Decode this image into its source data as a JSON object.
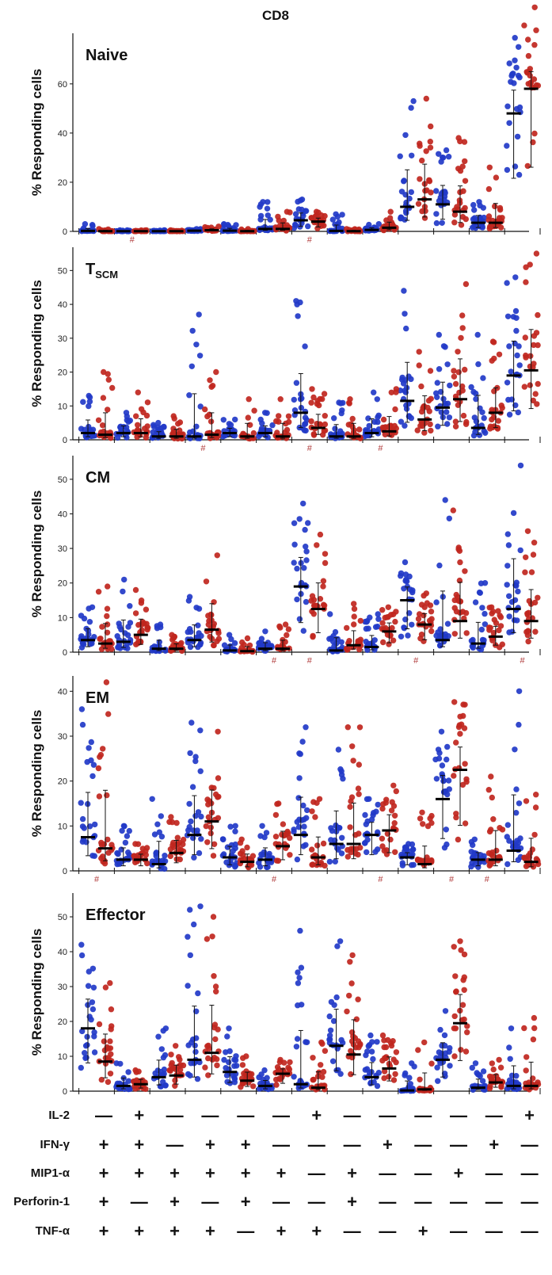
{
  "figure": {
    "title": "CD8",
    "ylabel": "% Responding cells",
    "colors": {
      "blue": "#2239c8",
      "red": "#c0261e",
      "axis": "#111111",
      "hash": "#b03a3a"
    }
  },
  "chart_data": [
    {
      "type": "scatter",
      "title": "Naive",
      "ylim": [
        0,
        78
      ],
      "yticks": [
        0,
        20,
        40,
        60
      ],
      "series": [
        {
          "name": "",
          "color": "blue",
          "medians": [
            0.2,
            0.1,
            0.1,
            0.3,
            0.3,
            1,
            4.5,
            0.2,
            0.6,
            10,
            11,
            3.5,
            48
          ],
          "spread": [
            3,
            0.5,
            0.5,
            1,
            3,
            12,
            13,
            7,
            3,
            53,
            33,
            12,
            75
          ]
        },
        {
          "name": "",
          "color": "red",
          "medians": [
            0.1,
            0.1,
            0.1,
            0.5,
            0.1,
            1,
            4,
            0.1,
            1.5,
            13,
            8,
            3.5,
            58
          ],
          "spread": [
            1,
            0.5,
            0.5,
            2,
            1,
            8,
            8,
            1,
            8,
            54,
            38,
            26,
            78
          ]
        }
      ],
      "hash_marks": [
        "#",
        "#"
      ],
      "hash_positions": [
        1.5,
        6.5
      ]
    },
    {
      "type": "scatter",
      "title": "T",
      "title_sub": "SCM",
      "ylim": [
        0,
        55
      ],
      "yticks": [
        0,
        10,
        20,
        30,
        40,
        50
      ],
      "series": [
        {
          "name": "",
          "color": "blue",
          "medians": [
            2,
            2,
            1,
            1,
            2,
            2,
            8,
            1,
            2,
            11.5,
            9.5,
            3.5,
            19
          ],
          "spread": [
            13,
            8,
            5,
            37,
            6,
            8,
            41,
            11,
            14,
            44,
            31,
            31,
            48
          ]
        },
        {
          "name": "",
          "color": "red",
          "medians": [
            1.5,
            2,
            1,
            1.5,
            1,
            1,
            3.5,
            1,
            2.5,
            6,
            12,
            8,
            20.5
          ],
          "spread": [
            20,
            14,
            7,
            20,
            12,
            12,
            15,
            12,
            15,
            26,
            46,
            29,
            55
          ]
        }
      ],
      "hash_marks": [
        "#",
        "#",
        "#"
      ],
      "hash_positions": [
        3.5,
        6.5,
        8.5
      ]
    },
    {
      "type": "scatter",
      "title": "CM",
      "ylim": [
        0,
        55
      ],
      "yticks": [
        0,
        10,
        20,
        30,
        40,
        50
      ],
      "series": [
        {
          "name": "",
          "color": "blue",
          "medians": [
            3.5,
            3,
            1,
            3.5,
            0.5,
            1,
            19,
            0.5,
            1.5,
            15,
            3.5,
            2.5,
            12.5
          ],
          "spread": [
            13,
            21,
            8,
            16,
            5,
            6,
            43,
            11,
            11,
            26,
            44,
            20,
            54
          ]
        },
        {
          "name": "",
          "color": "red",
          "medians": [
            2.5,
            5,
            1,
            6.5,
            0.3,
            1,
            12.5,
            2,
            6,
            8,
            9,
            4.5,
            9
          ],
          "spread": [
            19,
            18,
            5,
            28,
            4,
            8,
            34,
            14,
            13,
            17,
            41,
            13,
            35
          ]
        }
      ],
      "hash_marks": [
        "#",
        "#",
        "#",
        "#"
      ],
      "hash_positions": [
        5.5,
        6.5,
        9.5,
        12.5
      ]
    },
    {
      "type": "scatter",
      "title": "EM",
      "ylim": [
        0,
        42
      ],
      "yticks": [
        0,
        10,
        20,
        30,
        40
      ],
      "series": [
        {
          "name": "",
          "color": "blue",
          "medians": [
            7.5,
            2.5,
            1.5,
            8,
            3,
            2.5,
            8,
            6,
            8,
            3,
            16,
            2.5,
            4.5
          ],
          "spread": [
            36,
            10,
            16,
            33,
            10,
            10,
            32,
            27,
            16,
            6,
            31,
            7,
            40
          ]
        },
        {
          "name": "",
          "color": "red",
          "medians": [
            5,
            2.5,
            4,
            11,
            2,
            5.5,
            3,
            6,
            9,
            1.5,
            22.5,
            2.5,
            2
          ],
          "spread": [
            42,
            6,
            12,
            31,
            7,
            15,
            16,
            32,
            19,
            13,
            37,
            21,
            17
          ]
        }
      ],
      "hash_marks": [
        "#",
        "#",
        "#",
        "#",
        "#"
      ],
      "hash_positions": [
        0.5,
        5.5,
        8.5,
        10.5,
        11.5
      ]
    },
    {
      "type": "scatter",
      "title": "Effector",
      "ylim": [
        0,
        55
      ],
      "yticks": [
        0,
        10,
        20,
        30,
        40,
        50
      ],
      "series": [
        {
          "name": "",
          "color": "blue",
          "medians": [
            18,
            1.5,
            4,
            9,
            5.5,
            1.5,
            2,
            13,
            4,
            0.2,
            9,
            1,
            1.5
          ],
          "spread": [
            42,
            8,
            18,
            53,
            18,
            6,
            46,
            43,
            16,
            8,
            23,
            8,
            18
          ]
        },
        {
          "name": "",
          "color": "red",
          "medians": [
            8.5,
            2,
            4.5,
            11,
            3,
            5,
            1,
            10.5,
            6.5,
            0.5,
            19.5,
            2.5,
            1.5
          ],
          "spread": [
            31,
            6,
            13,
            50,
            10,
            9,
            14,
            39,
            16,
            14,
            43,
            9,
            21
          ]
        }
      ],
      "hash_marks": [],
      "hash_positions": []
    }
  ],
  "function_table": {
    "rows": [
      {
        "label": "IL-2",
        "signs": [
          "—",
          "+",
          "—",
          "—",
          "—",
          "—",
          "+",
          "—",
          "—",
          "—",
          "—",
          "—",
          "+"
        ]
      },
      {
        "label": "IFN-γ",
        "signs": [
          "+",
          "+",
          "—",
          "+",
          "+",
          "—",
          "—",
          "—",
          "+",
          "—",
          "—",
          "+",
          "—"
        ]
      },
      {
        "label": "MIP1-α",
        "signs": [
          "+",
          "+",
          "+",
          "+",
          "+",
          "+",
          "—",
          "+",
          "—",
          "—",
          "+",
          "—",
          "—"
        ]
      },
      {
        "label": "Perforin-1",
        "signs": [
          "+",
          "—",
          "+",
          "—",
          "+",
          "—",
          "—",
          "+",
          "—",
          "—",
          "—",
          "—",
          "—"
        ]
      },
      {
        "label": "TNF-α",
        "signs": [
          "+",
          "+",
          "+",
          "+",
          "—",
          "+",
          "+",
          "—",
          "—",
          "+",
          "—",
          "—",
          "—"
        ]
      }
    ]
  }
}
